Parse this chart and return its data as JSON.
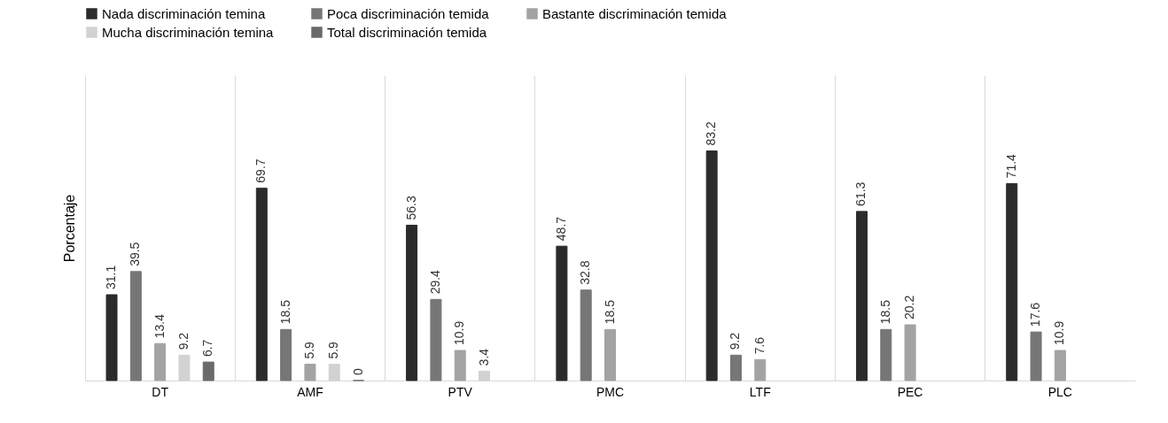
{
  "chart_data": {
    "type": "bar",
    "ylabel": "Porcentaje",
    "categories": [
      "DT",
      "AMF",
      "PTV",
      "PMC",
      "LTF",
      "PEC",
      "PLC"
    ],
    "series": [
      {
        "name": "Nada discriminación temina",
        "color": "#2b2b2b",
        "values": [
          31.1,
          69.7,
          56.3,
          48.7,
          83.2,
          61.3,
          71.4
        ]
      },
      {
        "name": "Poca discriminación temida",
        "color": "#767676",
        "values": [
          39.5,
          18.5,
          29.4,
          32.8,
          9.2,
          18.5,
          17.6
        ]
      },
      {
        "name": "Bastante discriminación temida",
        "color": "#a3a3a3",
        "values": [
          13.4,
          5.9,
          10.9,
          18.5,
          7.6,
          20.2,
          10.9
        ]
      },
      {
        "name": "Mucha discriminación temina",
        "color": "#d2d2d2",
        "values": [
          9.2,
          5.9,
          3.4,
          null,
          null,
          null,
          null
        ]
      },
      {
        "name": "Total discriminación temida",
        "color": "#6a6a6a",
        "values": [
          6.7,
          0,
          null,
          null,
          null,
          null,
          null
        ]
      }
    ],
    "data_labels": true,
    "legend": "top",
    "grid": "x"
  }
}
